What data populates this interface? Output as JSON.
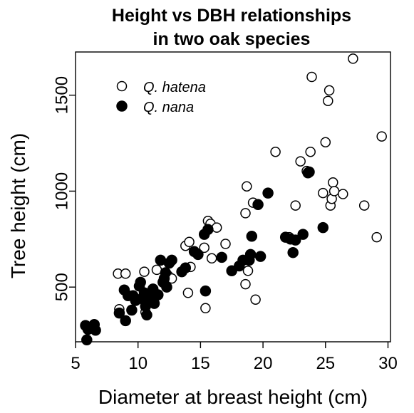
{
  "chart_data": {
    "type": "scatter",
    "title": [
      "Height vs DBH relationships",
      "in two oak species"
    ],
    "xlabel": "Diameter at breast height (cm)",
    "ylabel": "Tree height (cm)",
    "xlim": [
      5,
      30.2
    ],
    "ylim": [
      215,
      1725
    ],
    "x_ticks": [
      5,
      10,
      15,
      20,
      25,
      30
    ],
    "y_ticks": [
      500,
      1000,
      1500
    ],
    "grid": false,
    "legend": "top-left",
    "series": [
      {
        "name": "Q. hatena",
        "marker": "open-circle",
        "color": "#000000",
        "points": [
          [
            8.4,
            570
          ],
          [
            9.0,
            570
          ],
          [
            8.5,
            385
          ],
          [
            10.5,
            580
          ],
          [
            10.6,
            370
          ],
          [
            11.5,
            590
          ],
          [
            12.4,
            560
          ],
          [
            12.7,
            545
          ],
          [
            13.8,
            715
          ],
          [
            14.1,
            735
          ],
          [
            14.0,
            470
          ],
          [
            14.2,
            605
          ],
          [
            15.3,
            705
          ],
          [
            15.4,
            390
          ],
          [
            15.6,
            845
          ],
          [
            15.8,
            830
          ],
          [
            15.9,
            650
          ],
          [
            16.3,
            810
          ],
          [
            17.0,
            725
          ],
          [
            18.6,
            885
          ],
          [
            18.7,
            1025
          ],
          [
            18.6,
            515
          ],
          [
            18.8,
            585
          ],
          [
            19.2,
            940
          ],
          [
            19.4,
            435
          ],
          [
            21.0,
            1205
          ],
          [
            22.1,
            760
          ],
          [
            22.6,
            925
          ],
          [
            23.0,
            1155
          ],
          [
            23.5,
            1105
          ],
          [
            23.8,
            1205
          ],
          [
            23.9,
            1595
          ],
          [
            24.8,
            990
          ],
          [
            25.0,
            1255
          ],
          [
            25.2,
            1470
          ],
          [
            25.3,
            1525
          ],
          [
            25.4,
            925
          ],
          [
            25.5,
            960
          ],
          [
            25.6,
            1045
          ],
          [
            25.7,
            1000
          ],
          [
            26.4,
            985
          ],
          [
            27.2,
            1690
          ],
          [
            28.1,
            925
          ],
          [
            29.1,
            760
          ],
          [
            29.5,
            1285
          ]
        ]
      },
      {
        "name": "Q. nana",
        "marker": "filled-circle",
        "color": "#000000",
        "points": [
          [
            5.8,
            300
          ],
          [
            5.9,
            225
          ],
          [
            6.0,
            280
          ],
          [
            6.5,
            305
          ],
          [
            6.6,
            275
          ],
          [
            8.5,
            365
          ],
          [
            8.9,
            485
          ],
          [
            9.0,
            325
          ],
          [
            9.2,
            455
          ],
          [
            9.5,
            380
          ],
          [
            9.6,
            455
          ],
          [
            9.8,
            430
          ],
          [
            10.1,
            505
          ],
          [
            10.2,
            525
          ],
          [
            10.3,
            440
          ],
          [
            10.5,
            470
          ],
          [
            10.6,
            400
          ],
          [
            10.7,
            355
          ],
          [
            10.9,
            440
          ],
          [
            11.1,
            470
          ],
          [
            11.2,
            490
          ],
          [
            11.3,
            415
          ],
          [
            11.6,
            460
          ],
          [
            11.8,
            640
          ],
          [
            12.0,
            525
          ],
          [
            12.1,
            545
          ],
          [
            12.2,
            575
          ],
          [
            12.3,
            500
          ],
          [
            12.5,
            625
          ],
          [
            12.7,
            640
          ],
          [
            13.5,
            580
          ],
          [
            13.8,
            600
          ],
          [
            14.5,
            685
          ],
          [
            14.8,
            670
          ],
          [
            15.3,
            775
          ],
          [
            15.4,
            480
          ],
          [
            15.6,
            800
          ],
          [
            16.7,
            655
          ],
          [
            17.5,
            585
          ],
          [
            18.1,
            610
          ],
          [
            18.4,
            640
          ],
          [
            18.9,
            640
          ],
          [
            19.0,
            670
          ],
          [
            19.1,
            765
          ],
          [
            19.6,
            930
          ],
          [
            19.8,
            660
          ],
          [
            20.4,
            990
          ],
          [
            21.8,
            760
          ],
          [
            22.2,
            750
          ],
          [
            22.4,
            680
          ],
          [
            22.6,
            745
          ],
          [
            23.2,
            775
          ],
          [
            23.6,
            1095
          ],
          [
            23.7,
            1100
          ],
          [
            24.8,
            810
          ]
        ]
      }
    ]
  }
}
